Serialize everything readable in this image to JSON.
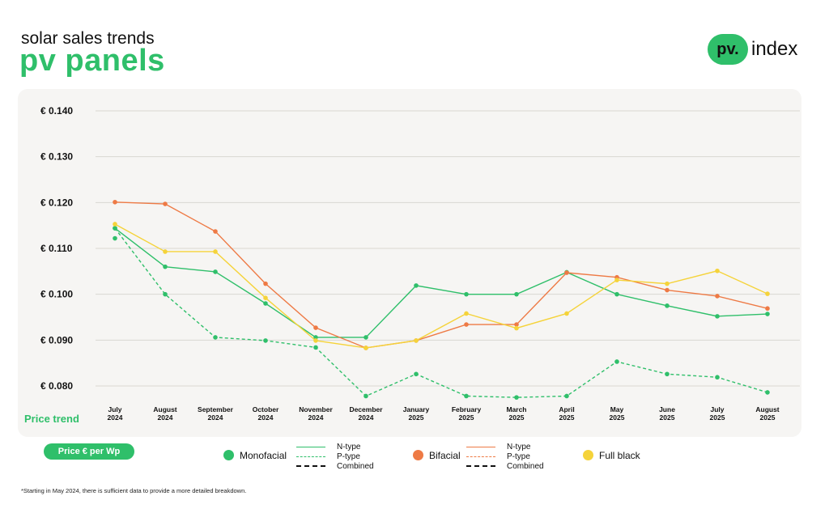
{
  "header": {
    "subtitle": "solar sales trends",
    "title": "pv panels",
    "logo_badge": "pv.",
    "logo_text": "index"
  },
  "axis": {
    "y_ticks": [
      "€ 0.140",
      "€ 0.130",
      "€ 0.120",
      "€ 0.110",
      "€ 0.100",
      "€ 0.090",
      "€ 0.080"
    ],
    "price_trend_label": "Price trend",
    "unit_badge": "Price € per Wp"
  },
  "legend": {
    "monofacial": {
      "name": "Monofacial",
      "lines": [
        "N-type",
        "P-type",
        "Combined"
      ]
    },
    "bifacial": {
      "name": "Bifacial",
      "lines": [
        "N-type",
        "P-type",
        "Combined"
      ]
    },
    "full_black": {
      "name": "Full black"
    }
  },
  "colors": {
    "green": "#2fbf6a",
    "orange": "#ee7a45",
    "yellow": "#f5d33a",
    "grid": "#d9d7d2"
  },
  "footnote": "*Starting in May 2024, there is sufficient data to provide a more detailed breakdown.",
  "chart_data": {
    "type": "line",
    "categories": [
      [
        "July",
        "2024"
      ],
      [
        "August",
        "2024"
      ],
      [
        "September",
        "2024"
      ],
      [
        "October",
        "2024"
      ],
      [
        "November",
        "2024"
      ],
      [
        "December",
        "2024"
      ],
      [
        "January",
        "2025"
      ],
      [
        "February",
        "2025"
      ],
      [
        "March",
        "2025"
      ],
      [
        "April",
        "2025"
      ],
      [
        "May",
        "2025"
      ],
      [
        "June",
        "2025"
      ],
      [
        "July",
        "2025"
      ],
      [
        "August",
        "2025"
      ]
    ],
    "ylim": [
      0.08,
      0.14
    ],
    "grid": true,
    "series": [
      {
        "name": "Monofacial N-type",
        "color": "#2fbf6a",
        "dashed": false,
        "values": [
          0.1144,
          0.106,
          0.1049,
          0.098,
          0.0906,
          0.0906,
          0.1019,
          0.1,
          0.1,
          0.1048,
          0.1,
          0.0975,
          0.0952,
          0.0957
        ]
      },
      {
        "name": "Monofacial P-type",
        "color": "#2fbf6a",
        "dashed": true,
        "values": [
          0.1144,
          0.1,
          0.0906,
          0.0899,
          0.0884,
          0.0778,
          0.0826,
          0.0778,
          0.0775,
          0.0778,
          0.0853,
          0.0826,
          0.0819,
          0.0786
        ]
      },
      {
        "name": "Monofacial Combined",
        "color": "#2fbf6a",
        "dashed": false,
        "dots_only": true,
        "values": [
          0.1122,
          null,
          null,
          null,
          null,
          null,
          null,
          null,
          null,
          null,
          null,
          null,
          null,
          null
        ]
      },
      {
        "name": "Bifacial N-type",
        "color": "#ee7a45",
        "dashed": false,
        "values": [
          0.1201,
          0.1197,
          0.1137,
          0.1023,
          0.0927,
          0.0883,
          0.0899,
          0.0934,
          0.0934,
          0.1047,
          0.1037,
          0.1009,
          0.0996,
          0.0969
        ]
      },
      {
        "name": "Full black",
        "color": "#f5d33a",
        "dashed": false,
        "values": [
          0.1153,
          0.1093,
          0.1093,
          0.0992,
          0.0899,
          0.0883,
          0.0899,
          0.0958,
          0.0926,
          0.0958,
          0.1031,
          0.1023,
          0.1051,
          0.1001
        ]
      }
    ]
  }
}
